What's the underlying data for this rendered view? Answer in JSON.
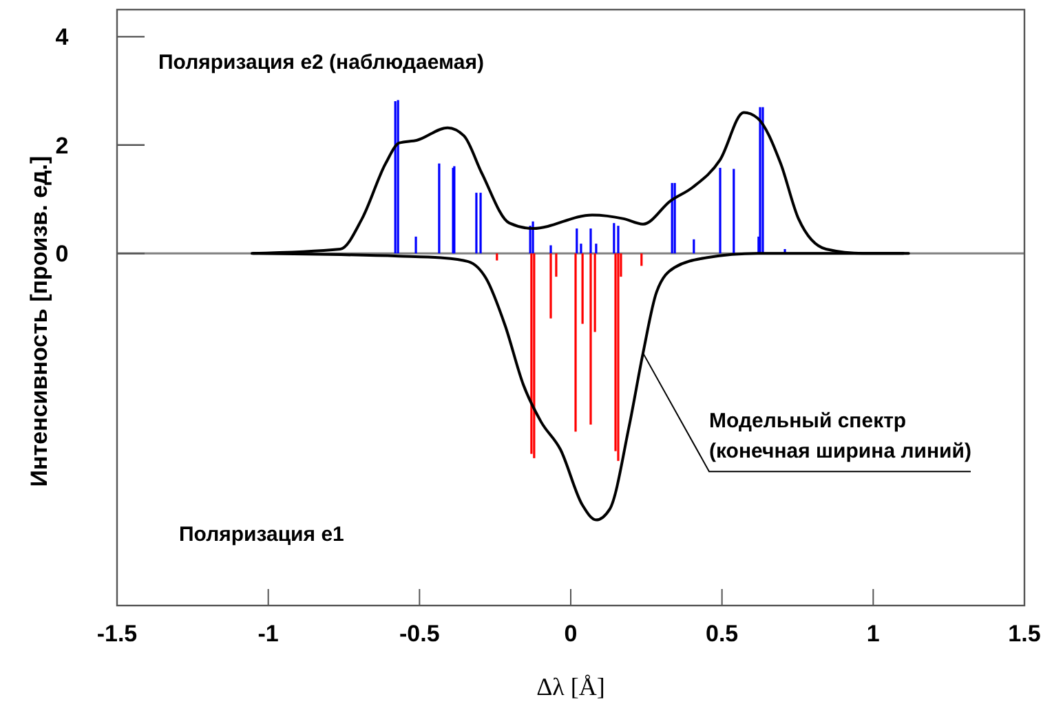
{
  "chart_data": {
    "type": "line",
    "xlabel": "Δλ [Å]",
    "ylabel": "Интенсивность [произв. ед.]",
    "xlim": [
      -1.5,
      1.5
    ],
    "xticks": [
      -1.5,
      -1,
      -0.5,
      0,
      0.5,
      1,
      1.5
    ],
    "ylim": [
      -6.5,
      4.5
    ],
    "yticks": [
      4,
      2,
      0
    ],
    "grid": false,
    "marker": "none",
    "line_style": "solid",
    "ref_lines": [
      {
        "axis": "y",
        "value": 0,
        "color": "#808080"
      }
    ],
    "annotations": [
      "Поляризация e2 (наблюдаемая)",
      "Поляризация e1",
      {
        "text": "Модельный спектр\n(конечная ширина линий)",
        "x": 0.239,
        "y": -1.84
      }
    ],
    "series": [
      {
        "color": "#000000",
        "x": [
          -1.054,
          -0.762,
          -0.69,
          -0.612,
          -0.567,
          -0.508,
          -0.407,
          -0.353,
          -0.294,
          -0.203,
          -0.125,
          0.071,
          0.175,
          0.239,
          0.33,
          0.403,
          0.494,
          0.572,
          0.617,
          0.694,
          0.753,
          0.844,
          0.967,
          1.117
        ],
        "values": [
          0,
          0.08,
          0.64,
          1.66,
          2.04,
          2.09,
          2.32,
          2.17,
          1.48,
          0.56,
          0.46,
          0.71,
          0.64,
          0.54,
          0.97,
          1.22,
          1.73,
          2.6,
          2.5,
          1.66,
          0.64,
          0.08,
          0,
          0
        ]
      },
      {
        "color": "#000000",
        "x": [
          -1.05,
          -0.57,
          -0.43,
          -0.339,
          -0.28,
          -0.217,
          -0.157,
          -0.098,
          -0.034,
          0.038,
          0.084,
          0.129,
          0.193,
          0.239,
          0.284,
          0.343,
          0.448,
          0.618,
          1.1
        ],
        "values": [
          0,
          -0.05,
          -0.08,
          -0.15,
          -0.46,
          -1.33,
          -2.42,
          -3.11,
          -3.62,
          -4.64,
          -4.92,
          -4.72,
          -3.19,
          -1.84,
          -0.71,
          -0.26,
          -0.08,
          0,
          0
        ]
      },
      {
        "type": "bar",
        "color": "#0000ff",
        "x": [
          -0.58,
          -0.571,
          -0.512,
          -0.435,
          -0.389,
          -0.385,
          -0.312,
          -0.298,
          -0.134,
          -0.125,
          -0.066,
          0.02,
          0.034,
          0.066,
          0.084,
          0.143,
          0.157,
          0.335,
          0.344,
          0.407,
          0.494,
          0.539,
          0.621,
          0.626,
          0.635,
          0.708
        ],
        "values": [
          2.81,
          2.83,
          0.31,
          1.66,
          1.58,
          1.61,
          1.12,
          1.12,
          0.51,
          0.59,
          0.15,
          0.46,
          0.18,
          0.46,
          0.18,
          0.56,
          0.51,
          1.3,
          1.3,
          0.26,
          1.58,
          1.56,
          0.31,
          2.7,
          2.7,
          0.08
        ]
      },
      {
        "type": "bar",
        "color": "#ff0000",
        "x": [
          -0.244,
          -0.13,
          -0.121,
          -0.066,
          -0.048,
          0.016,
          0.039,
          0.066,
          0.08,
          0.148,
          0.157,
          0.166,
          0.234
        ],
        "values": [
          -0.13,
          -3.7,
          -3.78,
          -1.2,
          -0.43,
          -3.29,
          -1.3,
          -3.16,
          -1.45,
          -3.65,
          -3.83,
          -0.43,
          -0.23
        ]
      }
    ]
  }
}
